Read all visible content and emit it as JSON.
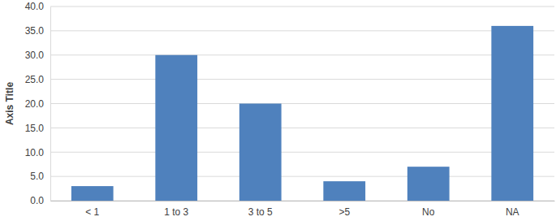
{
  "chart_data": {
    "type": "bar",
    "ylabel": "Axis Title",
    "categories": [
      "< 1",
      "1 to 3",
      "3 to 5",
      ">5",
      "No",
      "NA"
    ],
    "values": [
      3,
      30,
      20,
      4,
      7,
      36
    ],
    "color": "#4f81bd",
    "ylim": [
      0,
      40
    ],
    "yticks": [
      {
        "value": 0,
        "label": "0.0"
      },
      {
        "value": 5,
        "label": "5.0"
      },
      {
        "value": 10,
        "label": "10.0"
      },
      {
        "value": 15,
        "label": "15.0"
      },
      {
        "value": 20,
        "label": "20.0"
      },
      {
        "value": 25,
        "label": "25.0"
      },
      {
        "value": 30,
        "label": "30.0"
      },
      {
        "value": 35,
        "label": "35.0"
      },
      {
        "value": 40,
        "label": "40.0"
      }
    ],
    "grid": true
  }
}
